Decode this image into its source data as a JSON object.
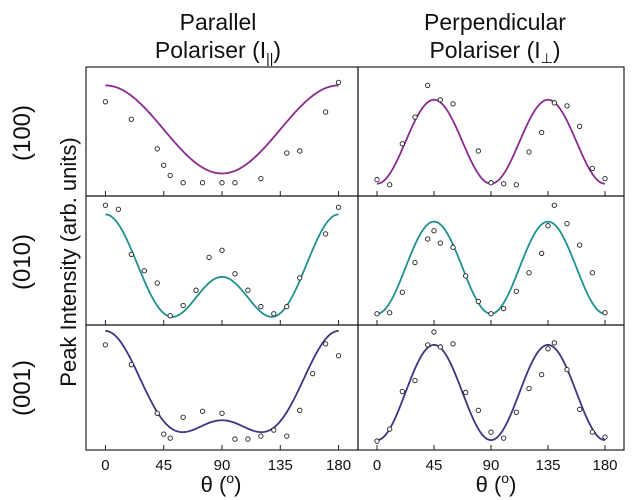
{
  "figure": {
    "col_titles": [
      {
        "line1": "Parallel",
        "line2": "Polariser (I",
        "sub": "||",
        "close": ")"
      },
      {
        "line1": "Perpendicular",
        "line2": "Polariser (I",
        "sub": "⊥",
        "close": ")"
      }
    ],
    "row_labels": [
      "(100)",
      "(010)",
      "(001)"
    ],
    "ylabel": "Peak Intensity (arb. units)",
    "xlabel": {
      "text": "θ (",
      "sup": "o",
      "close": ")"
    },
    "xticks": [
      0,
      45,
      90,
      135,
      180
    ]
  },
  "chart_data": [
    {
      "type": "scatter",
      "panel": "(100) parallel",
      "color": "#8b2a8e",
      "xlim": [
        -15,
        195
      ],
      "ylim": [
        -0.08,
        1.18
      ],
      "x": [
        0,
        20,
        40,
        45,
        50,
        60,
        75,
        90,
        100,
        120,
        140,
        150,
        170,
        180
      ],
      "points": [
        0.84,
        0.67,
        0.38,
        0.22,
        0.12,
        0.05,
        0.05,
        0.05,
        0.05,
        0.09,
        0.34,
        0.36,
        0.74,
        1.03
      ],
      "curve": {
        "kind": "cos",
        "a": 0.57,
        "b": 0.43,
        "n": 2,
        "phase": 0,
        "clip_min": 0.05
      }
    },
    {
      "type": "scatter",
      "panel": "(100) perpendicular",
      "color": "#8b2a8e",
      "xlim": [
        -15,
        195
      ],
      "ylim": [
        -0.08,
        1.18
      ],
      "x": [
        0,
        10,
        20,
        30,
        40,
        50,
        60,
        80,
        90,
        100,
        110,
        120,
        130,
        140,
        150,
        160,
        170,
        180
      ],
      "points": [
        0.08,
        0.03,
        0.43,
        0.69,
        1.0,
        0.86,
        0.82,
        0.36,
        0.05,
        0.04,
        0.03,
        0.35,
        0.54,
        0.83,
        0.8,
        0.6,
        0.19,
        0.09
      ],
      "curve": {
        "kind": "cos",
        "a": 0.45,
        "b": -0.41,
        "n": 4,
        "phase": 0
      }
    },
    {
      "type": "scatter",
      "panel": "(010) parallel",
      "color": "#1f9090",
      "xlim": [
        -15,
        195
      ],
      "ylim": [
        -0.08,
        1.18
      ],
      "x": [
        0,
        10,
        20,
        30,
        40,
        50,
        60,
        70,
        80,
        90,
        100,
        110,
        120,
        130,
        140,
        150,
        170,
        180
      ],
      "points": [
        1.09,
        1.05,
        0.61,
        0.45,
        0.33,
        0.01,
        0.11,
        0.26,
        0.58,
        0.65,
        0.42,
        0.26,
        0.1,
        0.03,
        0.1,
        0.38,
        0.81,
        1.07
      ],
      "curve": {
        "kind": "mix",
        "c0": 0.365,
        "c2": 0.305,
        "c4": 0.33
      }
    },
    {
      "type": "scatter",
      "panel": "(010) perpendicular",
      "color": "#1f9090",
      "xlim": [
        -15,
        195
      ],
      "ylim": [
        -0.08,
        1.18
      ],
      "x": [
        0,
        10,
        20,
        30,
        40,
        45,
        50,
        60,
        70,
        80,
        90,
        100,
        110,
        120,
        130,
        135,
        140,
        150,
        160,
        170,
        180
      ],
      "points": [
        0.03,
        0.04,
        0.24,
        0.53,
        0.76,
        0.84,
        0.72,
        0.68,
        0.4,
        0.15,
        0.03,
        0.08,
        0.25,
        0.43,
        0.62,
        0.89,
        1.09,
        0.91,
        0.7,
        0.43,
        0.04
      ],
      "curve": {
        "kind": "cos",
        "a": 0.48,
        "b": -0.45,
        "n": 4,
        "phase": 0
      }
    },
    {
      "type": "scatter",
      "panel": "(001) parallel",
      "color": "#3d3580",
      "xlim": [
        -15,
        195
      ],
      "ylim": [
        -0.08,
        1.18
      ],
      "x": [
        0,
        20,
        40,
        45,
        50,
        60,
        75,
        90,
        100,
        110,
        120,
        130,
        140,
        150,
        160,
        170,
        180
      ],
      "points": [
        0.98,
        0.78,
        0.29,
        0.08,
        0.04,
        0.25,
        0.31,
        0.29,
        0.03,
        0.03,
        0.06,
        0.12,
        0.06,
        0.32,
        0.69,
        0.99,
        0.87
      ],
      "curve": {
        "kind": "mix",
        "c0": 0.44,
        "c2": 0.45,
        "c4": 0.23
      }
    },
    {
      "type": "scatter",
      "panel": "(001) perpendicular",
      "color": "#3d3580",
      "xlim": [
        -15,
        195
      ],
      "ylim": [
        -0.08,
        1.18
      ],
      "x": [
        0,
        10,
        20,
        30,
        40,
        45,
        50,
        60,
        70,
        80,
        90,
        100,
        110,
        120,
        130,
        135,
        140,
        150,
        160,
        170,
        180
      ],
      "points": [
        0.01,
        0.13,
        0.51,
        0.62,
        0.98,
        1.11,
        0.96,
        0.99,
        0.5,
        0.32,
        0.1,
        0.04,
        0.3,
        0.54,
        0.68,
        0.94,
        1.0,
        0.73,
        0.33,
        0.1,
        0.05
      ],
      "curve": {
        "kind": "cos",
        "a": 0.5,
        "b": -0.48,
        "n": 4,
        "phase": 0
      }
    }
  ]
}
